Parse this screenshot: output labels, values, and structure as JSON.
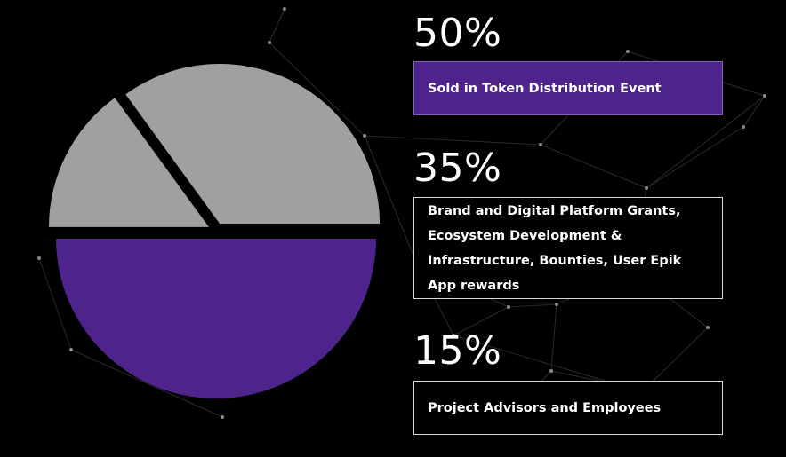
{
  "chart_data": {
    "type": "pie",
    "slices": [
      {
        "name": "Sold in Token Distribution Event",
        "percent_label": "50%",
        "value": 50,
        "color": "#4e238c"
      },
      {
        "name": "Brand and Digital Platform Grants, Ecosystem Development & Infrastructure, Bounties, User Epik App rewards",
        "percent_label": "35%",
        "value": 35,
        "color": "#a0a0a0"
      },
      {
        "name": "Project Advisors and Employees",
        "percent_label": "15%",
        "value": 15,
        "color": "#a0a0a0"
      }
    ]
  },
  "colors": {
    "background": "#000000",
    "accent_purple": "#4e238c",
    "slice_gray": "#a0a0a0"
  }
}
